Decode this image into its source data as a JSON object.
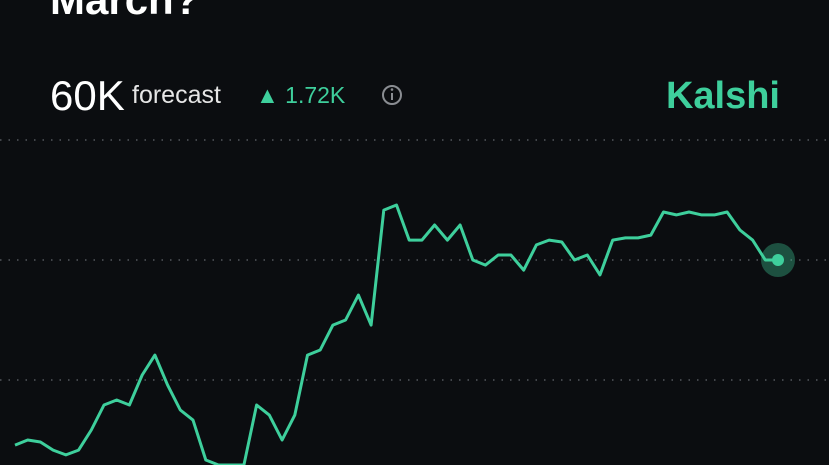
{
  "chart_data": {
    "type": "line",
    "title": "March?",
    "headline": "60K",
    "headline_label": "forecast",
    "change": "▲ 1.72K",
    "brand": "Kalshi",
    "color": "#3ecf9c",
    "grid": true,
    "ylim": [
      51460,
      65000
    ],
    "yticks": [
      55000,
      60000,
      65000
    ],
    "values": [
      52290,
      52500,
      52420,
      52080,
      51880,
      52080,
      52920,
      53960,
      54170,
      53960,
      55210,
      56040,
      54790,
      53750,
      53330,
      51670,
      51460,
      51460,
      51460,
      53960,
      53540,
      52500,
      53540,
      56040,
      56250,
      57290,
      57500,
      58540,
      57290,
      62080,
      62290,
      60830,
      60830,
      61460,
      60830,
      61460,
      60000,
      59790,
      60210,
      60210,
      59580,
      60630,
      60830,
      60750,
      60000,
      60210,
      59380,
      60830,
      60920,
      60920,
      61040,
      62000,
      61880,
      62000,
      61880,
      61880,
      62000,
      61250,
      60830,
      60000,
      60000
    ]
  }
}
